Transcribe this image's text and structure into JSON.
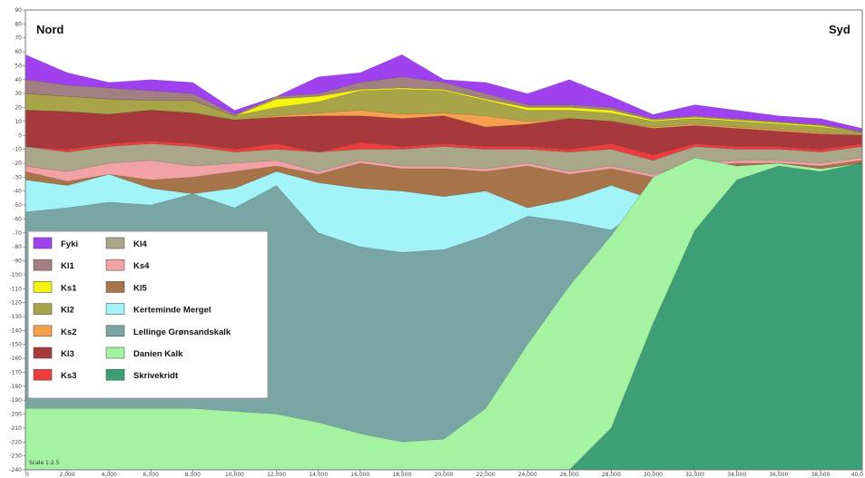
{
  "labels": {
    "north": "Nord",
    "south": "Syd",
    "scale": "Scale 1:2.5"
  },
  "chart_data": {
    "type": "area",
    "title": "",
    "xlabel": "",
    "ylabel": "",
    "xlim": [
      0,
      40000
    ],
    "ylim": [
      -240,
      90
    ],
    "grid": false,
    "legend": "bottom-left",
    "x_ticks": [
      "0",
      "2,000",
      "4,000",
      "6,000",
      "8,000",
      "10,000",
      "12,000",
      "14,000",
      "16,000",
      "18,000",
      "20,000",
      "22,000",
      "24,000",
      "26,000",
      "28,000",
      "30,000",
      "32,000",
      "34,000",
      "36,000",
      "38,000",
      "40,0"
    ],
    "y_ticks": [
      "90",
      "80",
      "70",
      "60",
      "50",
      "40",
      "30",
      "20",
      "10",
      "0",
      "-10",
      "-20",
      "-30",
      "-40",
      "-50",
      "-60",
      "-70",
      "-80",
      "-90",
      "-100",
      "-110",
      "-120",
      "-130",
      "-140",
      "-150",
      "-160",
      "-170",
      "-180",
      "-190",
      "-200",
      "-210",
      "-220",
      "-230",
      "-240"
    ],
    "x_samples": [
      0,
      2000,
      4000,
      6000,
      8000,
      10000,
      12000,
      14000,
      16000,
      18000,
      20000,
      22000,
      24000,
      26000,
      28000,
      30000,
      32000,
      34000,
      36000,
      38000,
      40000
    ],
    "boundaries": [
      {
        "name": "top",
        "values": [
          58,
          45,
          38,
          40,
          38,
          18,
          28,
          42,
          45,
          58,
          40,
          38,
          30,
          40,
          28,
          15,
          22,
          18,
          14,
          12,
          5
        ]
      },
      {
        "name": "Fyki",
        "values": [
          40,
          36,
          34,
          32,
          30,
          15,
          28,
          30,
          38,
          42,
          38,
          30,
          22,
          22,
          20,
          12,
          14,
          12,
          10,
          8,
          3
        ]
      },
      {
        "name": "Kl1",
        "values": [
          30,
          28,
          26,
          25,
          25,
          14,
          26,
          28,
          33,
          34,
          33,
          26,
          20,
          20,
          18,
          11,
          13,
          11,
          9,
          7,
          2
        ]
      },
      {
        "name": "Ks1",
        "values": [
          30,
          28,
          26,
          25,
          25,
          14,
          20,
          24,
          32,
          33,
          32,
          25,
          18,
          18,
          16,
          10,
          12,
          10,
          8,
          6,
          2
        ]
      },
      {
        "name": "Kl2",
        "values": [
          18,
          17,
          15,
          18,
          16,
          11,
          14,
          16,
          18,
          15,
          16,
          14,
          10,
          12,
          10,
          6,
          8,
          6,
          4,
          2,
          0
        ]
      },
      {
        "name": "Ks2",
        "values": [
          18,
          17,
          15,
          18,
          16,
          11,
          13,
          14,
          14,
          12,
          14,
          6,
          8,
          12,
          10,
          5,
          7,
          5,
          3,
          1,
          0
        ]
      },
      {
        "name": "Kl3",
        "values": [
          -8,
          -10,
          -6,
          -4,
          -6,
          -10,
          -6,
          -12,
          -5,
          -8,
          -6,
          -8,
          -8,
          -10,
          -6,
          -14,
          -6,
          -8,
          -8,
          -10,
          -6
        ]
      },
      {
        "name": "Ks3",
        "values": [
          -8,
          -12,
          -8,
          -6,
          -8,
          -12,
          -10,
          -12,
          -10,
          -10,
          -8,
          -10,
          -10,
          -12,
          -10,
          -18,
          -8,
          -10,
          -10,
          -12,
          -8
        ]
      },
      {
        "name": "Kl4",
        "values": [
          -22,
          -26,
          -20,
          -18,
          -22,
          -20,
          -18,
          -26,
          -18,
          -22,
          -22,
          -24,
          -20,
          -26,
          -22,
          -28,
          -20,
          -18,
          -18,
          -20,
          -16
        ]
      },
      {
        "name": "Ks4",
        "values": [
          -26,
          -33,
          -28,
          -32,
          -30,
          -26,
          -22,
          -28,
          -20,
          -24,
          -24,
          -26,
          -22,
          -28,
          -24,
          -30,
          -22,
          -20,
          -20,
          -22,
          -18
        ]
      },
      {
        "name": "Kl5",
        "values": [
          -32,
          -36,
          -28,
          -38,
          -42,
          -38,
          -26,
          -34,
          -38,
          -40,
          -44,
          -40,
          -52,
          -46,
          -36,
          -46,
          -26,
          -24,
          -22,
          -25,
          -20
        ]
      },
      {
        "name": "Kerteminde Mergel",
        "values": [
          -55,
          -52,
          -48,
          -50,
          -42,
          -52,
          -36,
          -70,
          -80,
          -84,
          -82,
          -72,
          -58,
          -62,
          -68,
          -46,
          -28,
          -26,
          -22,
          -25,
          -20
        ]
      },
      {
        "name": "Lellinge Grønsandskalk",
        "values": [
          -196,
          -196,
          -196,
          -196,
          -196,
          -198,
          -200,
          -206,
          -214,
          -220,
          -218,
          -196,
          -150,
          -108,
          -72,
          -30,
          -16,
          -22,
          -20,
          -24,
          -20
        ]
      },
      {
        "name": "Danien Kalk",
        "values": [
          -240,
          -240,
          -240,
          -240,
          -240,
          -240,
          -240,
          -240,
          -240,
          -240,
          -240,
          -240,
          -240,
          -240,
          -210,
          -135,
          -68,
          -32,
          -22,
          -26,
          -20
        ]
      }
    ],
    "series": [
      {
        "name": "Fyki",
        "color": "#9f41ef"
      },
      {
        "name": "Kl1",
        "color": "#a17f82"
      },
      {
        "name": "Ks1",
        "color": "#f4f40f"
      },
      {
        "name": "Kl2",
        "color": "#a9a44a"
      },
      {
        "name": "Ks2",
        "color": "#f5a04d"
      },
      {
        "name": "Kl3",
        "color": "#a7383b"
      },
      {
        "name": "Ks3",
        "color": "#ee3b3d"
      },
      {
        "name": "Kl4",
        "color": "#a9a689"
      },
      {
        "name": "Ks4",
        "color": "#f2a1a4"
      },
      {
        "name": "Kl5",
        "color": "#a7744a"
      },
      {
        "name": "Kerteminde Mergel",
        "color": "#a2f4f8"
      },
      {
        "name": "Lellinge Grønsandskalk",
        "color": "#79a5a5"
      },
      {
        "name": "Danien Kalk",
        "color": "#a3f3a3"
      },
      {
        "name": "Skrivekridt",
        "color": "#3d9f76"
      }
    ]
  }
}
